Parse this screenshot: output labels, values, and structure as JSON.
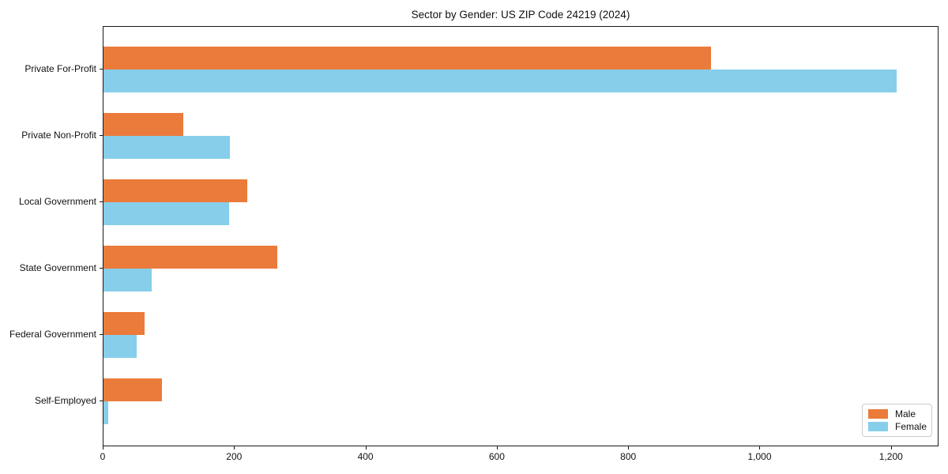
{
  "chart_data": {
    "type": "bar",
    "orientation": "horizontal",
    "title": "Sector by Gender: US ZIP Code 24219 (2024)",
    "categories": [
      "Private For-Profit",
      "Private Non-Profit",
      "Local Government",
      "State Government",
      "Federal Government",
      "Self-Employed"
    ],
    "series": [
      {
        "name": "Male",
        "color": "#EB7B3B",
        "values": [
          925,
          122,
          219,
          265,
          63,
          89
        ]
      },
      {
        "name": "Female",
        "color": "#87CEEB",
        "values": [
          1208,
          193,
          191,
          73,
          51,
          7
        ]
      }
    ],
    "xlabel": "",
    "ylabel": "",
    "xlim": [
      0,
      1270
    ],
    "x_ticks": [
      0,
      200,
      400,
      600,
      800,
      1000,
      1200
    ],
    "x_tick_labels": [
      "0",
      "200",
      "400",
      "600",
      "800",
      "1,000",
      "1,200"
    ],
    "grid": false,
    "legend_position": "lower-right",
    "background_color": "#ffffff",
    "spine_color": "#1a1a1a"
  }
}
